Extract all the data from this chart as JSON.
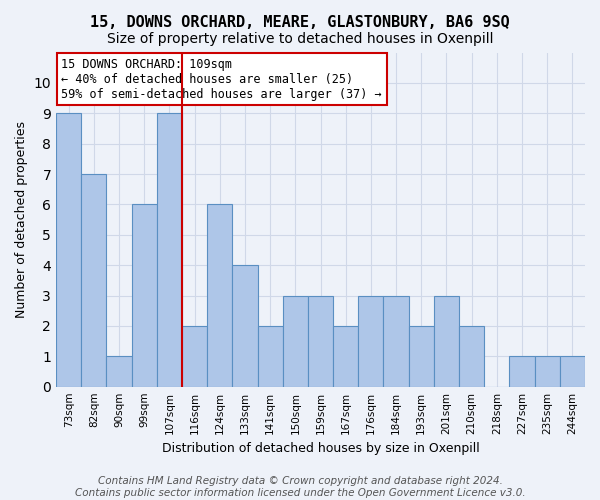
{
  "title": "15, DOWNS ORCHARD, MEARE, GLASTONBURY, BA6 9SQ",
  "subtitle": "Size of property relative to detached houses in Oxenpill",
  "xlabel": "Distribution of detached houses by size in Oxenpill",
  "ylabel": "Number of detached properties",
  "categories": [
    "73sqm",
    "82sqm",
    "90sqm",
    "99sqm",
    "107sqm",
    "116sqm",
    "124sqm",
    "133sqm",
    "141sqm",
    "150sqm",
    "159sqm",
    "167sqm",
    "176sqm",
    "184sqm",
    "193sqm",
    "201sqm",
    "210sqm",
    "218sqm",
    "227sqm",
    "235sqm",
    "244sqm"
  ],
  "values": [
    9,
    7,
    1,
    6,
    9,
    2,
    6,
    4,
    2,
    3,
    3,
    2,
    3,
    3,
    2,
    3,
    2,
    0,
    1,
    1,
    1
  ],
  "bar_color": "#aec6e8",
  "bar_edge_color": "#5a8fc2",
  "grid_color": "#d0d8e8",
  "background_color": "#eef2f9",
  "annotation_text": "15 DOWNS ORCHARD: 109sqm\n← 40% of detached houses are smaller (25)\n59% of semi-detached houses are larger (37) →",
  "annotation_box_color": "#ffffff",
  "annotation_box_edge_color": "#cc0000",
  "vline_x": 4.5,
  "vline_color": "#cc0000",
  "ylim": [
    0,
    11
  ],
  "yticks": [
    0,
    1,
    2,
    3,
    4,
    5,
    6,
    7,
    8,
    9,
    10,
    11
  ],
  "footer": "Contains HM Land Registry data © Crown copyright and database right 2024.\nContains public sector information licensed under the Open Government Licence v3.0.",
  "title_fontsize": 11,
  "subtitle_fontsize": 10,
  "xlabel_fontsize": 9,
  "ylabel_fontsize": 9,
  "footer_fontsize": 7.5,
  "annotation_fontsize": 8.5
}
